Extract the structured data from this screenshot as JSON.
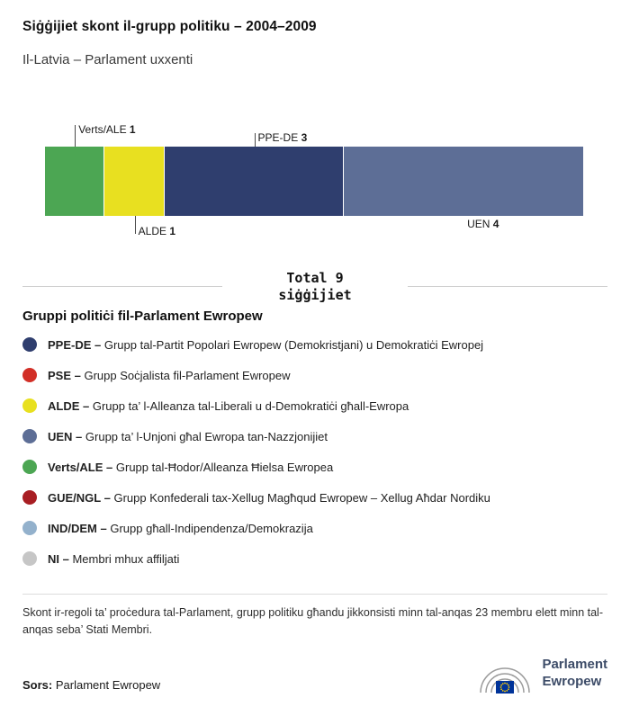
{
  "header": {
    "title": "Siġġijiet skont il-grupp politiku – 2004–2009",
    "subtitle": "Il-Latvia – Parlament uxxenti"
  },
  "chart_data": {
    "type": "bar",
    "variant": "horizontal-stacked",
    "title": "Siġġijiet skont il-grupp politiku – 2004–2009",
    "total": 9,
    "total_label": {
      "line1": "Total 9",
      "line2": "siġġijiet"
    },
    "segments": [
      {
        "name": "Verts/ALE",
        "value": 1,
        "color": "#4CA653",
        "label_position": "top",
        "connector_len": 24
      },
      {
        "name": "ALDE",
        "value": 1,
        "color": "#E8E020",
        "label_position": "bottom",
        "connector_len": 20
      },
      {
        "name": "PPE-DE",
        "value": 3,
        "color": "#2F3E6E",
        "label_position": "top",
        "connector_len": 15
      },
      {
        "name": "UEN",
        "value": 4,
        "color": "#5D6E96",
        "label_position": "bottom",
        "connector_len": 0
      }
    ]
  },
  "legend": {
    "heading": "Gruppi politiċi fil-Parlament Ewropew",
    "items": [
      {
        "abbr": "PPE-DE –",
        "desc": "Grupp tal-Partit Popolari Ewropew (Demokristjani) u Demokratiċi Ewropej",
        "color": "#2F3E6E"
      },
      {
        "abbr": "PSE –",
        "desc": "Grupp Soċjalista fil-Parlament Ewropew",
        "color": "#D22F27"
      },
      {
        "abbr": "ALDE –",
        "desc": "Grupp ta’ l-Alleanza tal-Liberali u d-Demokratiċi għall-Ewropa",
        "color": "#E8E020"
      },
      {
        "abbr": "UEN –",
        "desc": "Grupp ta’ l-Unjoni għal Ewropa tan-Nazzjonijiet",
        "color": "#5D6E96"
      },
      {
        "abbr": "Verts/ALE –",
        "desc": "Grupp tal-Ħodor/Alleanza Ħielsa Ewropea",
        "color": "#4CA653"
      },
      {
        "abbr": "GUE/NGL –",
        "desc": "Grupp Konfederali tax-Xellug Magħqud Ewropew – Xellug Aħdar Nordiku",
        "color": "#A81E23"
      },
      {
        "abbr": "IND/DEM –",
        "desc": "Grupp għall-Indipendenza/Demokrazija",
        "color": "#93B1CC"
      },
      {
        "abbr": "NI –",
        "desc": "Membri mhux affiljati",
        "color": "#C6C6C6"
      }
    ]
  },
  "note": "Skont ir-regoli ta’ proċedura tal-Parlament, grupp politiku għandu jikkonsisti minn tal-anqas 23 membru elett minn tal-anqas seba’ Stati Membri.",
  "source": {
    "label": "Sors:",
    "value": "Parlament Ewropew"
  },
  "logo": {
    "line1": "Parlament",
    "line2": "Ewropew"
  }
}
